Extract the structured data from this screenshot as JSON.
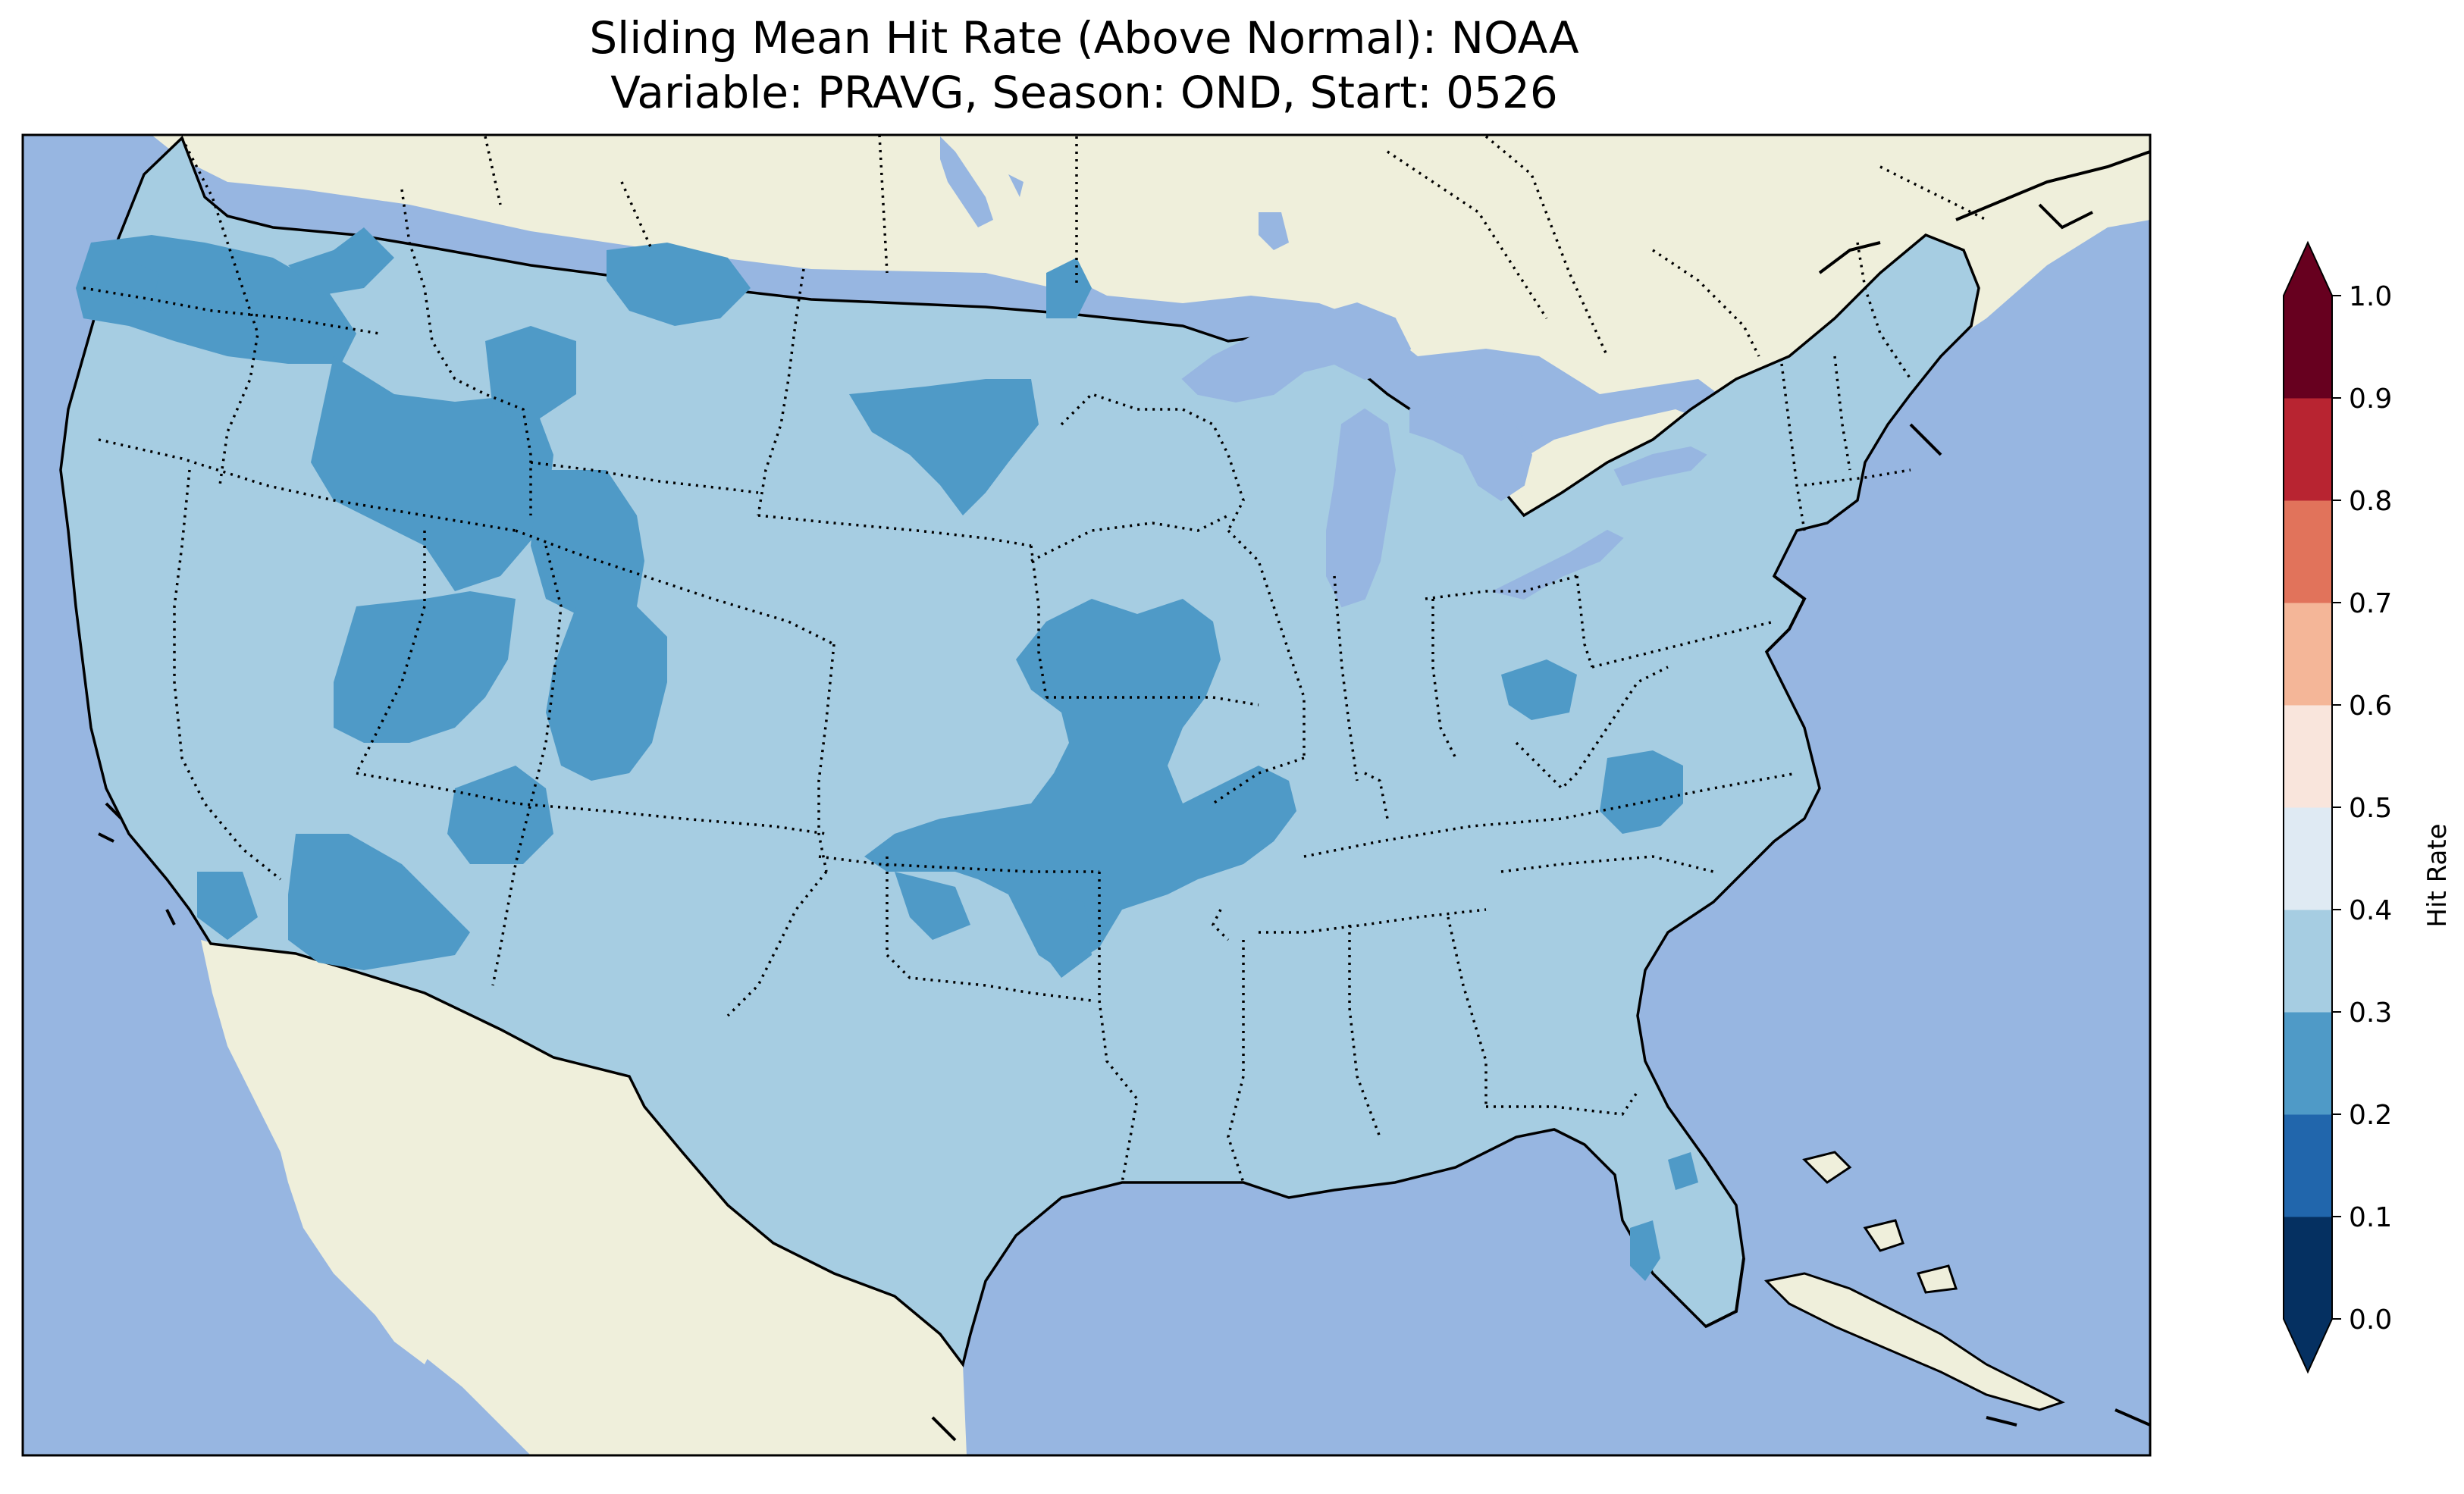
{
  "title": {
    "line1": "Sliding Mean Hit Rate (Above Normal): NOAA",
    "line2": "Variable: PRAVG, Season: OND, Start: 0526"
  },
  "map": {
    "ocean_color": "#97b6e1",
    "land_color": "#efefdb",
    "lake_color": "#97b6e1",
    "coastline_color": "#000000",
    "state_border_style": "dotted"
  },
  "colorbar": {
    "label": "Hit Rate",
    "extend": "both",
    "levels": [
      0.0,
      0.1,
      0.2,
      0.3,
      0.4,
      0.5,
      0.6,
      0.7,
      0.8,
      0.9,
      1.0
    ],
    "tick_labels": [
      "0.0",
      "0.1",
      "0.2",
      "0.3",
      "0.4",
      "0.5",
      "0.6",
      "0.7",
      "0.8",
      "0.9",
      "1.0"
    ],
    "colors": [
      "#053061",
      "#2166ac",
      "#4393c3",
      "#92c5de",
      "#d1e5f0",
      "#fddbc7",
      "#f4a582",
      "#d6604d",
      "#b2182b",
      "#67001f"
    ],
    "display_colors": [
      "#053061",
      "#2166ac",
      "#4f9ac7",
      "#a6cde2",
      "#dfeaf3",
      "#f9e5dc",
      "#f4b698",
      "#e1735b",
      "#b82431",
      "#67001f"
    ],
    "under_color": "#053061",
    "over_color": "#67001f"
  },
  "chart_data": {
    "type": "heatmap",
    "title": "Sliding Mean Hit Rate (Above Normal): NOAA\nVariable: PRAVG, Season: OND, Start: 0526",
    "colorbar_label": "Hit Rate",
    "value_range": [
      0.0,
      1.0
    ],
    "dominant_bin": [
      0.3,
      0.4
    ],
    "regions": [
      {
        "name": "Washington / Oregon coast",
        "bin": [
          0.2,
          0.3
        ]
      },
      {
        "name": "Oregon / Idaho plateau",
        "bin": [
          0.2,
          0.3
        ]
      },
      {
        "name": "Northern Montana",
        "bin": [
          0.2,
          0.3
        ]
      },
      {
        "name": "Western Wyoming / Idaho",
        "bin": [
          0.2,
          0.3
        ]
      },
      {
        "name": "Utah",
        "bin": [
          0.2,
          0.3
        ]
      },
      {
        "name": "Arizona",
        "bin": [
          0.2,
          0.3
        ]
      },
      {
        "name": "Northern North Dakota",
        "bin": [
          0.2,
          0.3
        ]
      },
      {
        "name": "South Dakota",
        "bin": [
          0.2,
          0.3
        ]
      },
      {
        "name": "Missouri / Kansas / Oklahoma / Arkansas",
        "bin": [
          0.2,
          0.3
        ]
      },
      {
        "name": "Kentucky / Ohio",
        "bin": [
          0.2,
          0.3
        ]
      },
      {
        "name": "Western North Carolina",
        "bin": [
          0.2,
          0.3
        ]
      },
      {
        "name": "Southwest Florida",
        "bin": [
          0.2,
          0.3
        ]
      }
    ]
  }
}
